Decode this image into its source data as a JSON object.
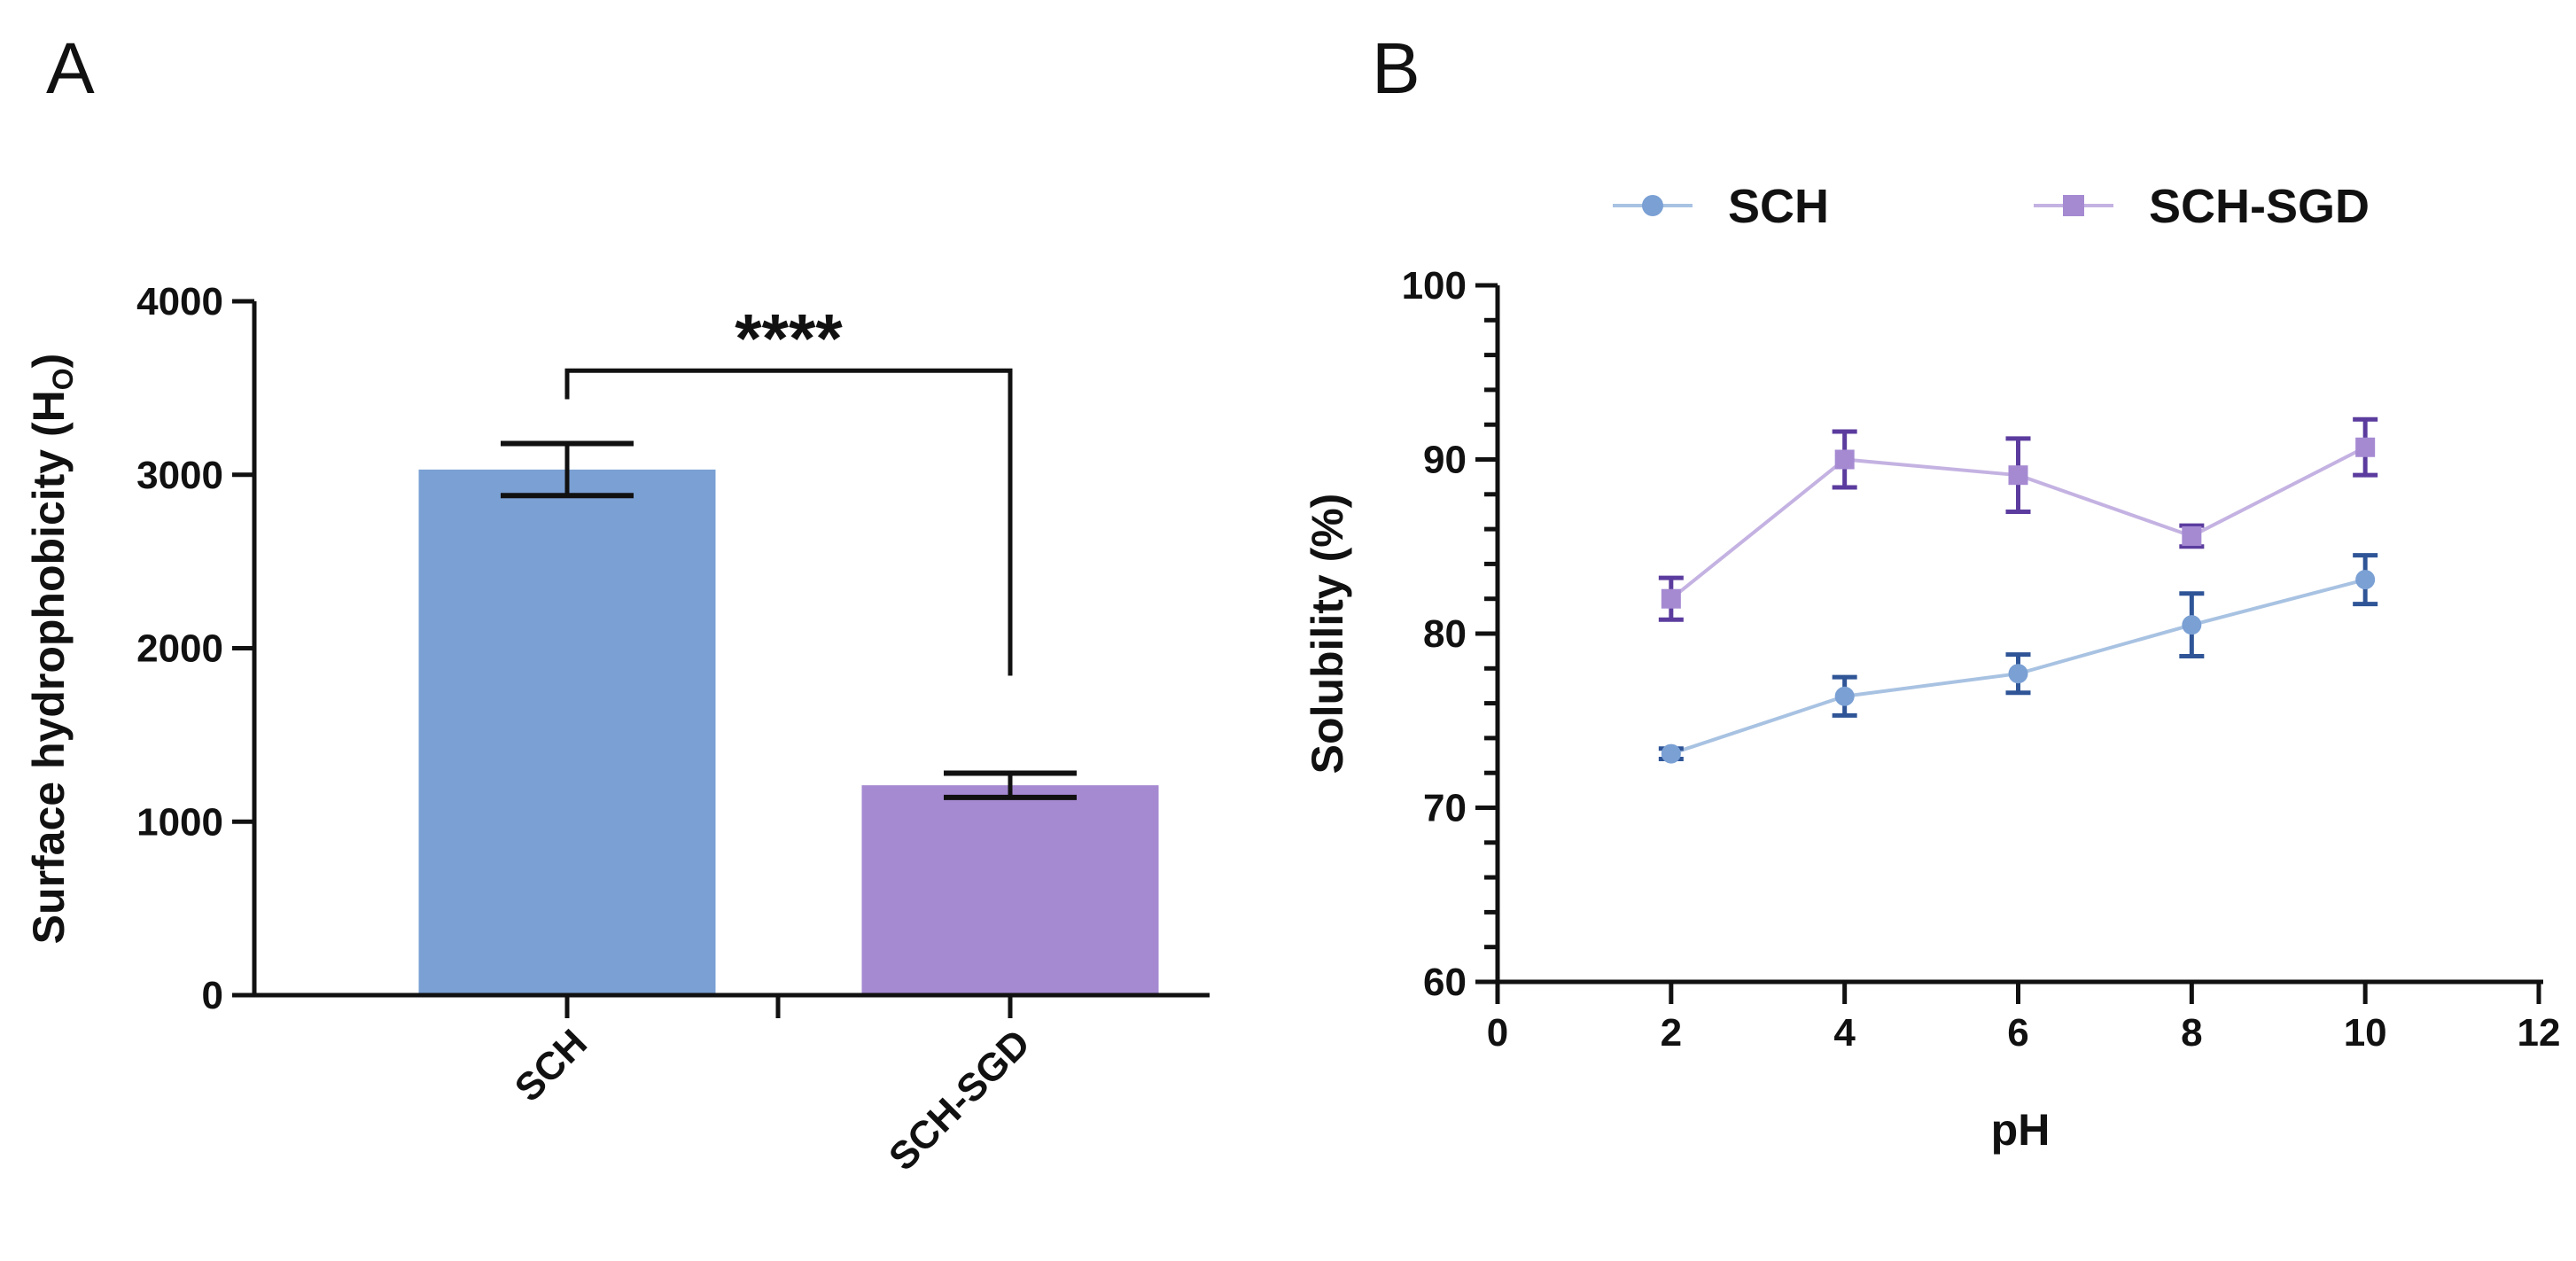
{
  "chart_data": [
    {
      "panel": "A",
      "type": "bar",
      "categories": [
        "SCH",
        "SCH-SGD"
      ],
      "values": [
        3030,
        1210
      ],
      "errors": [
        150,
        70
      ],
      "ylabel": "Surface hydrophobicity (H",
      "ylabel_sub": "O",
      "ylabel_end": ")",
      "xlabel": "",
      "ylim": [
        0,
        4000
      ],
      "yticks": [
        "0",
        "1000",
        "2000",
        "3000",
        "4000"
      ],
      "ytick_values": [
        0,
        1000,
        2000,
        3000,
        4000
      ],
      "significance": "****",
      "colors": [
        "#7aa0d4",
        "#a58ad2"
      ]
    },
    {
      "panel": "B",
      "type": "line",
      "xlabel": "pH",
      "ylabel": "Solubility (%)",
      "xlim": [
        0,
        12
      ],
      "ylim": [
        60,
        100
      ],
      "xticks": [
        "0",
        "2",
        "4",
        "6",
        "8",
        "10",
        "12"
      ],
      "xtick_values": [
        0,
        2,
        4,
        6,
        8,
        10,
        12
      ],
      "yticks": [
        "60",
        "70",
        "80",
        "90",
        "100"
      ],
      "ytick_values": [
        60,
        70,
        80,
        90,
        100
      ],
      "x": [
        2,
        4,
        6,
        8,
        10
      ],
      "series": [
        {
          "name": "SCH",
          "values": [
            73.1,
            76.4,
            77.7,
            80.5,
            83.1
          ],
          "errors": [
            0.3,
            1.1,
            1.1,
            1.8,
            1.4
          ],
          "marker": "circle",
          "line_color": "#a8c2e2",
          "marker_color": "#7aa0d4",
          "error_color": "#2f5597"
        },
        {
          "name": "SCH-SGD",
          "values": [
            82.0,
            90.0,
            89.1,
            85.6,
            90.7
          ],
          "errors": [
            1.2,
            1.6,
            2.1,
            0.6,
            1.6
          ],
          "marker": "square",
          "line_color": "#c4b2e2",
          "marker_color": "#a58ad2",
          "error_color": "#5b3c9e"
        }
      ]
    }
  ]
}
